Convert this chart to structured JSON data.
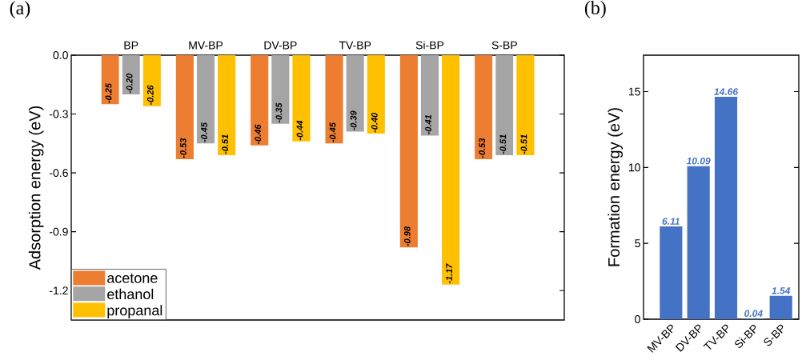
{
  "chart_data": [
    {
      "type": "bar",
      "title": "(a)",
      "ylabel": "Adsorption energy (eV)",
      "categories": [
        "BP",
        "MV-BP",
        "DV-BP",
        "TV-BP",
        "Si-BP",
        "S-BP"
      ],
      "series": [
        {
          "name": "acetone",
          "color": "#ed7d31",
          "values": [
            -0.25,
            -0.53,
            -0.46,
            -0.45,
            -0.98,
            -0.53
          ],
          "value_labels": [
            "-0.25",
            "-0.53",
            "-0.46",
            "-0.45",
            "-0.98",
            "-0.53"
          ]
        },
        {
          "name": "ethanol",
          "color": "#a5a5a5",
          "values": [
            -0.2,
            -0.45,
            -0.35,
            -0.39,
            -0.41,
            -0.51
          ],
          "value_labels": [
            "-0.20",
            "-0.45",
            "-0.35",
            "-0.39",
            "-0.41",
            "-0.51"
          ]
        },
        {
          "name": "propanal",
          "color": "#ffc000",
          "values": [
            -0.26,
            -0.51,
            -0.44,
            -0.4,
            -1.17,
            -0.51
          ],
          "value_labels": [
            "-0.26",
            "-0.51",
            "-0.44",
            "-0.40",
            "-1.17",
            "-0.51"
          ]
        }
      ],
      "ylim": [
        -1.35,
        0
      ],
      "yticks": [
        {
          "value": 0,
          "label": "0.0"
        },
        {
          "value": -0.3,
          "label": "-0.3"
        },
        {
          "value": -0.6,
          "label": "-0.6"
        },
        {
          "value": -0.9,
          "label": "-0.9"
        },
        {
          "value": -1.2,
          "label": "-1.2"
        }
      ],
      "legend": "bottom left"
    },
    {
      "type": "bar",
      "title": "(b)",
      "ylabel": "Formation energy (eV)",
      "categories": [
        "MV-BP",
        "DV-BP",
        "TV-BP",
        "Si-BP",
        "S-BP"
      ],
      "values": [
        6.11,
        10.09,
        14.66,
        0.04,
        1.54
      ],
      "color": "#4472c4",
      "ylim": [
        0,
        17.4
      ],
      "yticks": [
        0,
        5,
        10,
        15
      ],
      "data_labels": true
    }
  ]
}
